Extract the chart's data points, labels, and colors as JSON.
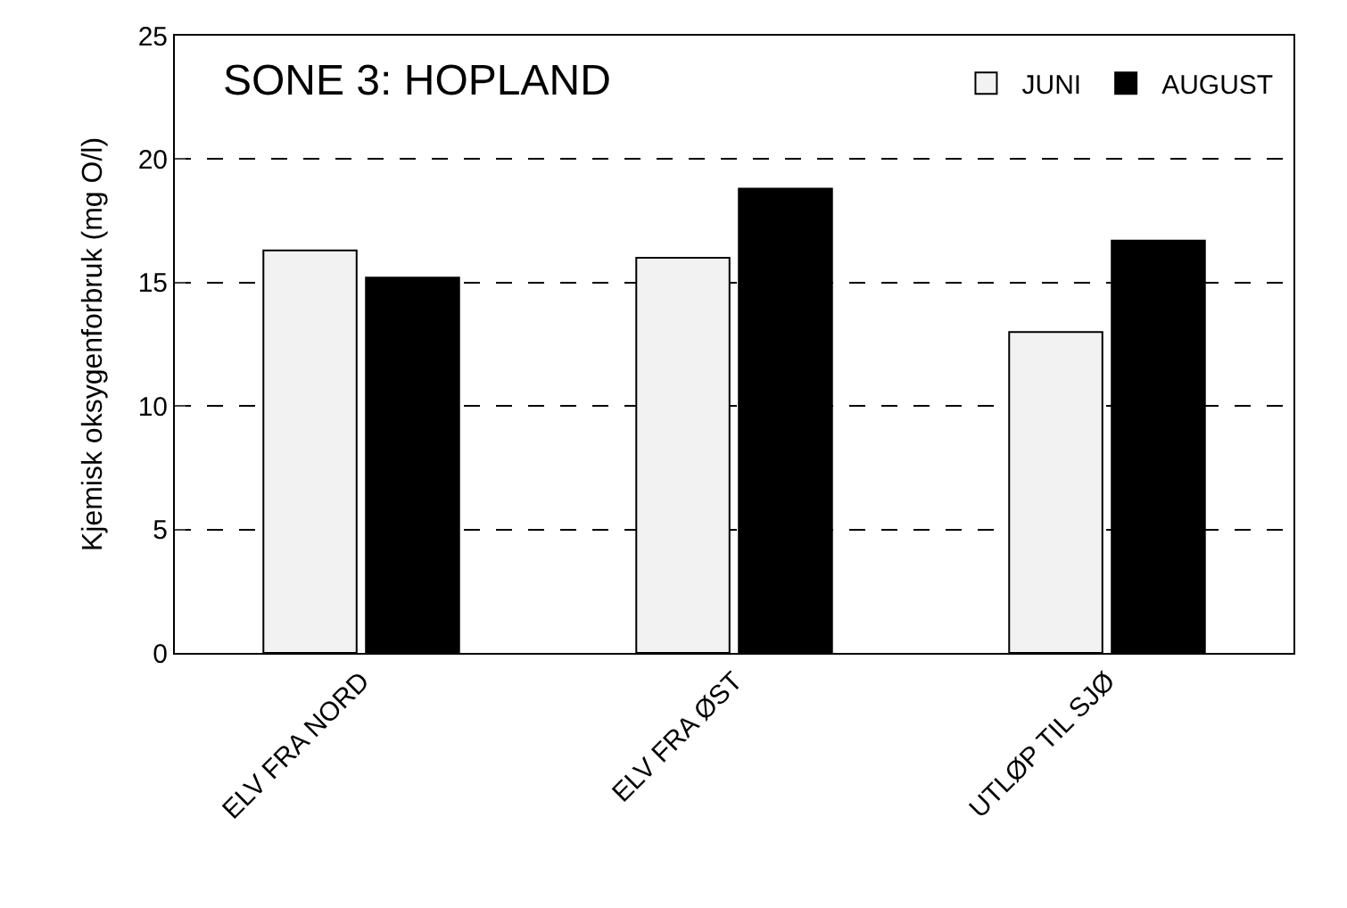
{
  "chart_data": {
    "type": "bar",
    "title": "SONE 3: HOPLAND",
    "ylabel": "Kjemisk oksygenforbruk (mg O/l)",
    "categories": [
      "ELV FRA NORD",
      "ELV FRA ØST",
      "UTLØP TIL SJØ"
    ],
    "series": [
      {
        "name": "JUNI",
        "color": "#f2f2f2",
        "values": [
          16.3,
          16.0,
          13.0
        ]
      },
      {
        "name": "AUGUST",
        "color": "#000000",
        "values": [
          15.2,
          18.8,
          16.7
        ]
      }
    ],
    "ylim": [
      0,
      25
    ],
    "yticks": [
      0,
      5,
      10,
      15,
      20,
      25
    ],
    "grid": "y",
    "line_style": "dashed",
    "legend": "top right"
  }
}
